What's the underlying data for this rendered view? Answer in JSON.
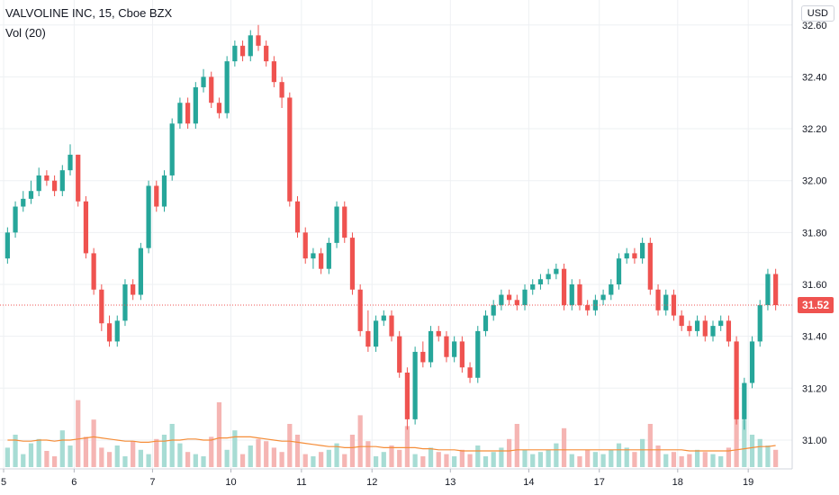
{
  "header": {
    "title": "VALVOLINE INC, 15, Cboe BZX",
    "indicator": "Vol (20)",
    "currency": "USD"
  },
  "last_price_label": "31.52",
  "colors": {
    "up": "#26a69a",
    "down": "#ef5350",
    "up_vol": "#a7dcd4",
    "down_vol": "#f5b5b3",
    "vol_ma": "#f58d38",
    "grid": "#eef0f3"
  },
  "chart_data": {
    "type": "candlestick",
    "title": "VALVOLINE INC, 15, Cboe BZX",
    "ylim": [
      30.92,
      32.62
    ],
    "y_ticks": [
      "31.00",
      "31.20",
      "31.40",
      "31.60",
      "31.80",
      "32.00",
      "32.20",
      "32.40",
      "32.60"
    ],
    "x_ticks": [
      "5",
      "6",
      "7",
      "10",
      "11",
      "12",
      "13",
      "14",
      "17",
      "18",
      "19"
    ],
    "last_price": 31.52,
    "series": [
      {
        "name": "price",
        "close": [
          31.8,
          31.9,
          31.93,
          31.96,
          32.02,
          32.0,
          31.96,
          32.04,
          32.1,
          31.92,
          31.72,
          31.58,
          31.45,
          31.38,
          31.46,
          31.6,
          31.56,
          31.74,
          31.98,
          31.9,
          32.02,
          32.22,
          32.3,
          32.22,
          32.36,
          32.4,
          32.3,
          32.26,
          32.46,
          32.52,
          32.48,
          32.56,
          32.52,
          32.46,
          32.38,
          32.32,
          31.92,
          31.8,
          31.7,
          31.72,
          31.66,
          31.76,
          31.9,
          31.78,
          31.58,
          31.42,
          31.36,
          31.46,
          31.48,
          31.4,
          31.26,
          31.08,
          31.34,
          31.3,
          31.42,
          31.4,
          31.32,
          31.38,
          31.28,
          31.24,
          31.42,
          31.48,
          31.52,
          31.56,
          31.54,
          31.52,
          31.58,
          31.6,
          31.62,
          31.64,
          31.66,
          31.52,
          31.6,
          31.52,
          31.5,
          31.54,
          31.56,
          31.6,
          31.7,
          31.72,
          31.7,
          31.76,
          31.58,
          31.5,
          31.56,
          31.48,
          31.44,
          31.42,
          31.46,
          31.4,
          31.44,
          31.46,
          31.38,
          31.08,
          31.22,
          31.38,
          31.52,
          31.64,
          31.52
        ],
        "open": [
          31.7,
          31.8,
          31.9,
          31.93,
          31.96,
          32.02,
          32.0,
          31.96,
          32.04,
          32.1,
          31.92,
          31.72,
          31.58,
          31.45,
          31.38,
          31.46,
          31.6,
          31.56,
          31.74,
          31.98,
          31.9,
          32.02,
          32.22,
          32.3,
          32.22,
          32.36,
          32.4,
          32.3,
          32.26,
          32.46,
          32.52,
          32.48,
          32.56,
          32.52,
          32.46,
          32.38,
          32.32,
          31.92,
          31.8,
          31.7,
          31.72,
          31.66,
          31.76,
          31.9,
          31.78,
          31.58,
          31.42,
          31.36,
          31.46,
          31.48,
          31.4,
          31.26,
          31.08,
          31.34,
          31.3,
          31.42,
          31.4,
          31.32,
          31.38,
          31.28,
          31.24,
          31.42,
          31.48,
          31.52,
          31.56,
          31.54,
          31.52,
          31.58,
          31.6,
          31.62,
          31.64,
          31.66,
          31.52,
          31.6,
          31.52,
          31.5,
          31.54,
          31.56,
          31.6,
          31.7,
          31.72,
          31.7,
          31.76,
          31.58,
          31.5,
          31.56,
          31.48,
          31.44,
          31.42,
          31.46,
          31.4,
          31.44,
          31.46,
          31.38,
          31.08,
          31.22,
          31.38,
          31.52,
          31.64
        ],
        "high": [
          31.82,
          31.92,
          31.96,
          32.0,
          32.05,
          32.04,
          32.02,
          32.06,
          32.14,
          32.1,
          31.94,
          31.74,
          31.6,
          31.48,
          31.48,
          31.62,
          31.62,
          31.76,
          32.0,
          32.0,
          32.04,
          32.24,
          32.32,
          32.32,
          32.38,
          32.43,
          32.42,
          32.32,
          32.48,
          32.54,
          32.54,
          32.58,
          32.6,
          32.54,
          32.48,
          32.4,
          32.34,
          31.94,
          31.82,
          31.74,
          31.74,
          31.78,
          31.92,
          31.92,
          31.8,
          31.6,
          31.5,
          31.48,
          31.5,
          31.5,
          31.42,
          31.28,
          31.36,
          31.38,
          31.44,
          31.44,
          31.42,
          31.4,
          31.4,
          31.3,
          31.44,
          31.5,
          31.54,
          31.58,
          31.58,
          31.56,
          31.6,
          31.62,
          31.64,
          31.66,
          31.68,
          31.68,
          31.62,
          31.62,
          31.54,
          31.56,
          31.58,
          31.62,
          31.72,
          31.74,
          31.74,
          31.78,
          31.78,
          31.6,
          31.58,
          31.58,
          31.5,
          31.46,
          31.48,
          31.48,
          31.46,
          31.48,
          31.48,
          31.4,
          31.24,
          31.4,
          31.54,
          31.66,
          31.66
        ],
        "low": [
          31.68,
          31.78,
          31.88,
          31.91,
          31.94,
          31.98,
          31.94,
          31.94,
          32.02,
          31.9,
          31.7,
          31.56,
          31.42,
          31.36,
          31.36,
          31.44,
          31.54,
          31.54,
          31.72,
          31.88,
          31.88,
          32.0,
          32.2,
          32.2,
          32.2,
          32.34,
          32.28,
          32.24,
          32.24,
          32.44,
          32.46,
          32.46,
          32.5,
          32.44,
          32.36,
          32.28,
          31.9,
          31.78,
          31.68,
          31.66,
          31.64,
          31.64,
          31.74,
          31.76,
          31.56,
          31.4,
          31.34,
          31.34,
          31.44,
          31.38,
          31.24,
          31.04,
          31.06,
          31.28,
          31.28,
          31.38,
          31.3,
          31.3,
          31.26,
          31.22,
          31.22,
          31.4,
          31.46,
          31.5,
          31.52,
          31.5,
          31.5,
          31.56,
          31.58,
          31.6,
          31.62,
          31.5,
          31.5,
          31.5,
          31.48,
          31.48,
          31.52,
          31.54,
          31.58,
          31.68,
          31.68,
          31.68,
          31.56,
          31.48,
          31.48,
          31.46,
          31.42,
          31.4,
          31.4,
          31.38,
          31.38,
          31.42,
          31.36,
          31.06,
          31.04,
          31.2,
          31.36,
          31.5,
          31.5
        ]
      },
      {
        "name": "Vol (20)",
        "volume": [
          18,
          30,
          12,
          22,
          26,
          15,
          10,
          34,
          20,
          62,
          28,
          44,
          18,
          14,
          20,
          10,
          24,
          16,
          12,
          26,
          30,
          40,
          22,
          14,
          12,
          10,
          28,
          60,
          16,
          34,
          12,
          20,
          26,
          24,
          18,
          14,
          40,
          30,
          12,
          10,
          14,
          16,
          22,
          12,
          30,
          48,
          24,
          10,
          14,
          20,
          16,
          38,
          12,
          10,
          18,
          14,
          12,
          10,
          16,
          12,
          20,
          10,
          14,
          18,
          26,
          40,
          16,
          12,
          14,
          16,
          22,
          36,
          12,
          10,
          16,
          14,
          12,
          16,
          22,
          18,
          14,
          26,
          40,
          20,
          12,
          14,
          10,
          12,
          16,
          14,
          12,
          10,
          18,
          52,
          44,
          30,
          26,
          20,
          16
        ],
        "ma": [
          25,
          25,
          24,
          24,
          25,
          25,
          24,
          25,
          25,
          26,
          27,
          28,
          27,
          26,
          25,
          24,
          24,
          23,
          23,
          24,
          24,
          25,
          25,
          26,
          26,
          25,
          25,
          27,
          27,
          28,
          28,
          28,
          27,
          26,
          25,
          24,
          24,
          23,
          22,
          21,
          20,
          19,
          19,
          18,
          18,
          19,
          19,
          19,
          18,
          18,
          18,
          18,
          18,
          17,
          17,
          16,
          16,
          16,
          15,
          15,
          15,
          15,
          15,
          15,
          15,
          16,
          16,
          16,
          16,
          16,
          16,
          16,
          16,
          16,
          16,
          16,
          16,
          16,
          16,
          16,
          16,
          16,
          16,
          16,
          16,
          16,
          16,
          15,
          15,
          15,
          15,
          15,
          15,
          16,
          17,
          18,
          19,
          19,
          20
        ]
      }
    ]
  }
}
